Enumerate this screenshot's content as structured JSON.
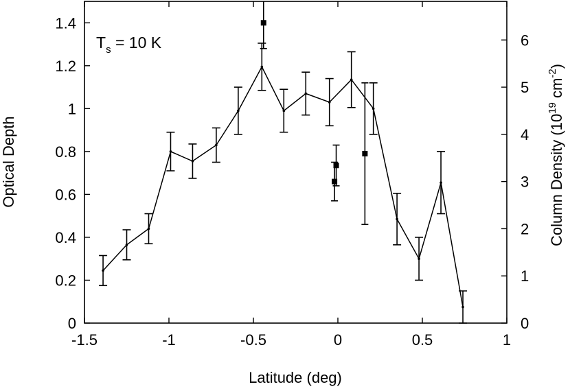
{
  "chart_data": {
    "type": "line",
    "annotation": {
      "main": "T",
      "sub": "s",
      "rest": " = 10 K"
    },
    "xlabel": "Latitude (deg)",
    "ylabel": "Optical Depth",
    "y2label": {
      "prefix": "Column Density (10",
      "sup1": "19",
      "mid": " cm",
      "sup2": "-2",
      "suffix": ")"
    },
    "xlim": [
      -1.5,
      1
    ],
    "ylim": [
      0,
      1.5
    ],
    "y2lim": [
      0,
      6.818
    ],
    "xticks": [
      "-1.5",
      "-1",
      "-0.5",
      "0",
      "0.5",
      "1"
    ],
    "xtick_values": [
      -1.5,
      -1,
      -0.5,
      0,
      0.5,
      1
    ],
    "yticks": [
      "0",
      "0.2",
      "0.4",
      "0.6",
      "0.8",
      "1",
      "1.2",
      "1.4"
    ],
    "ytick_values": [
      0,
      0.2,
      0.4,
      0.6,
      0.8,
      1.0,
      1.2,
      1.4
    ],
    "y2ticks": [
      "0",
      "1",
      "2",
      "3",
      "4",
      "5",
      "6"
    ],
    "y2tick_values": [
      0,
      1,
      2,
      3,
      4,
      5,
      6
    ],
    "grid": false,
    "series": [
      {
        "style": "line-with-errorbars",
        "points": [
          {
            "x": -1.39,
            "y": 0.245,
            "err": 0.07
          },
          {
            "x": -1.25,
            "y": 0.365,
            "err": 0.07
          },
          {
            "x": -1.12,
            "y": 0.44,
            "err": 0.07
          },
          {
            "x": -0.99,
            "y": 0.8,
            "err": 0.09
          },
          {
            "x": -0.86,
            "y": 0.755,
            "err": 0.08
          },
          {
            "x": -0.72,
            "y": 0.83,
            "err": 0.08
          },
          {
            "x": -0.59,
            "y": 0.99,
            "err": 0.11
          },
          {
            "x": -0.45,
            "y": 1.195,
            "err": 0.11
          },
          {
            "x": -0.32,
            "y": 0.99,
            "err": 0.1
          },
          {
            "x": -0.19,
            "y": 1.07,
            "err": 0.1
          },
          {
            "x": -0.05,
            "y": 1.03,
            "err": 0.11
          },
          {
            "x": 0.08,
            "y": 1.135,
            "err": 0.13
          },
          {
            "x": 0.21,
            "y": 1.0,
            "err": 0.12
          },
          {
            "x": 0.35,
            "y": 0.485,
            "err": 0.12
          },
          {
            "x": 0.48,
            "y": 0.3,
            "err": 0.1
          },
          {
            "x": 0.61,
            "y": 0.655,
            "err": 0.145
          },
          {
            "x": 0.74,
            "y": 0.075,
            "err": 0.075
          }
        ]
      },
      {
        "style": "squares-with-errorbars",
        "points": [
          {
            "x": -0.44,
            "y": 1.4,
            "err": 0.12
          },
          {
            "x": -0.02,
            "y": 0.66,
            "err": 0.09
          },
          {
            "x": -0.01,
            "y": 0.735,
            "err": 0.095
          },
          {
            "x": 0.16,
            "y": 0.79,
            "err": 0.33
          }
        ]
      }
    ]
  }
}
